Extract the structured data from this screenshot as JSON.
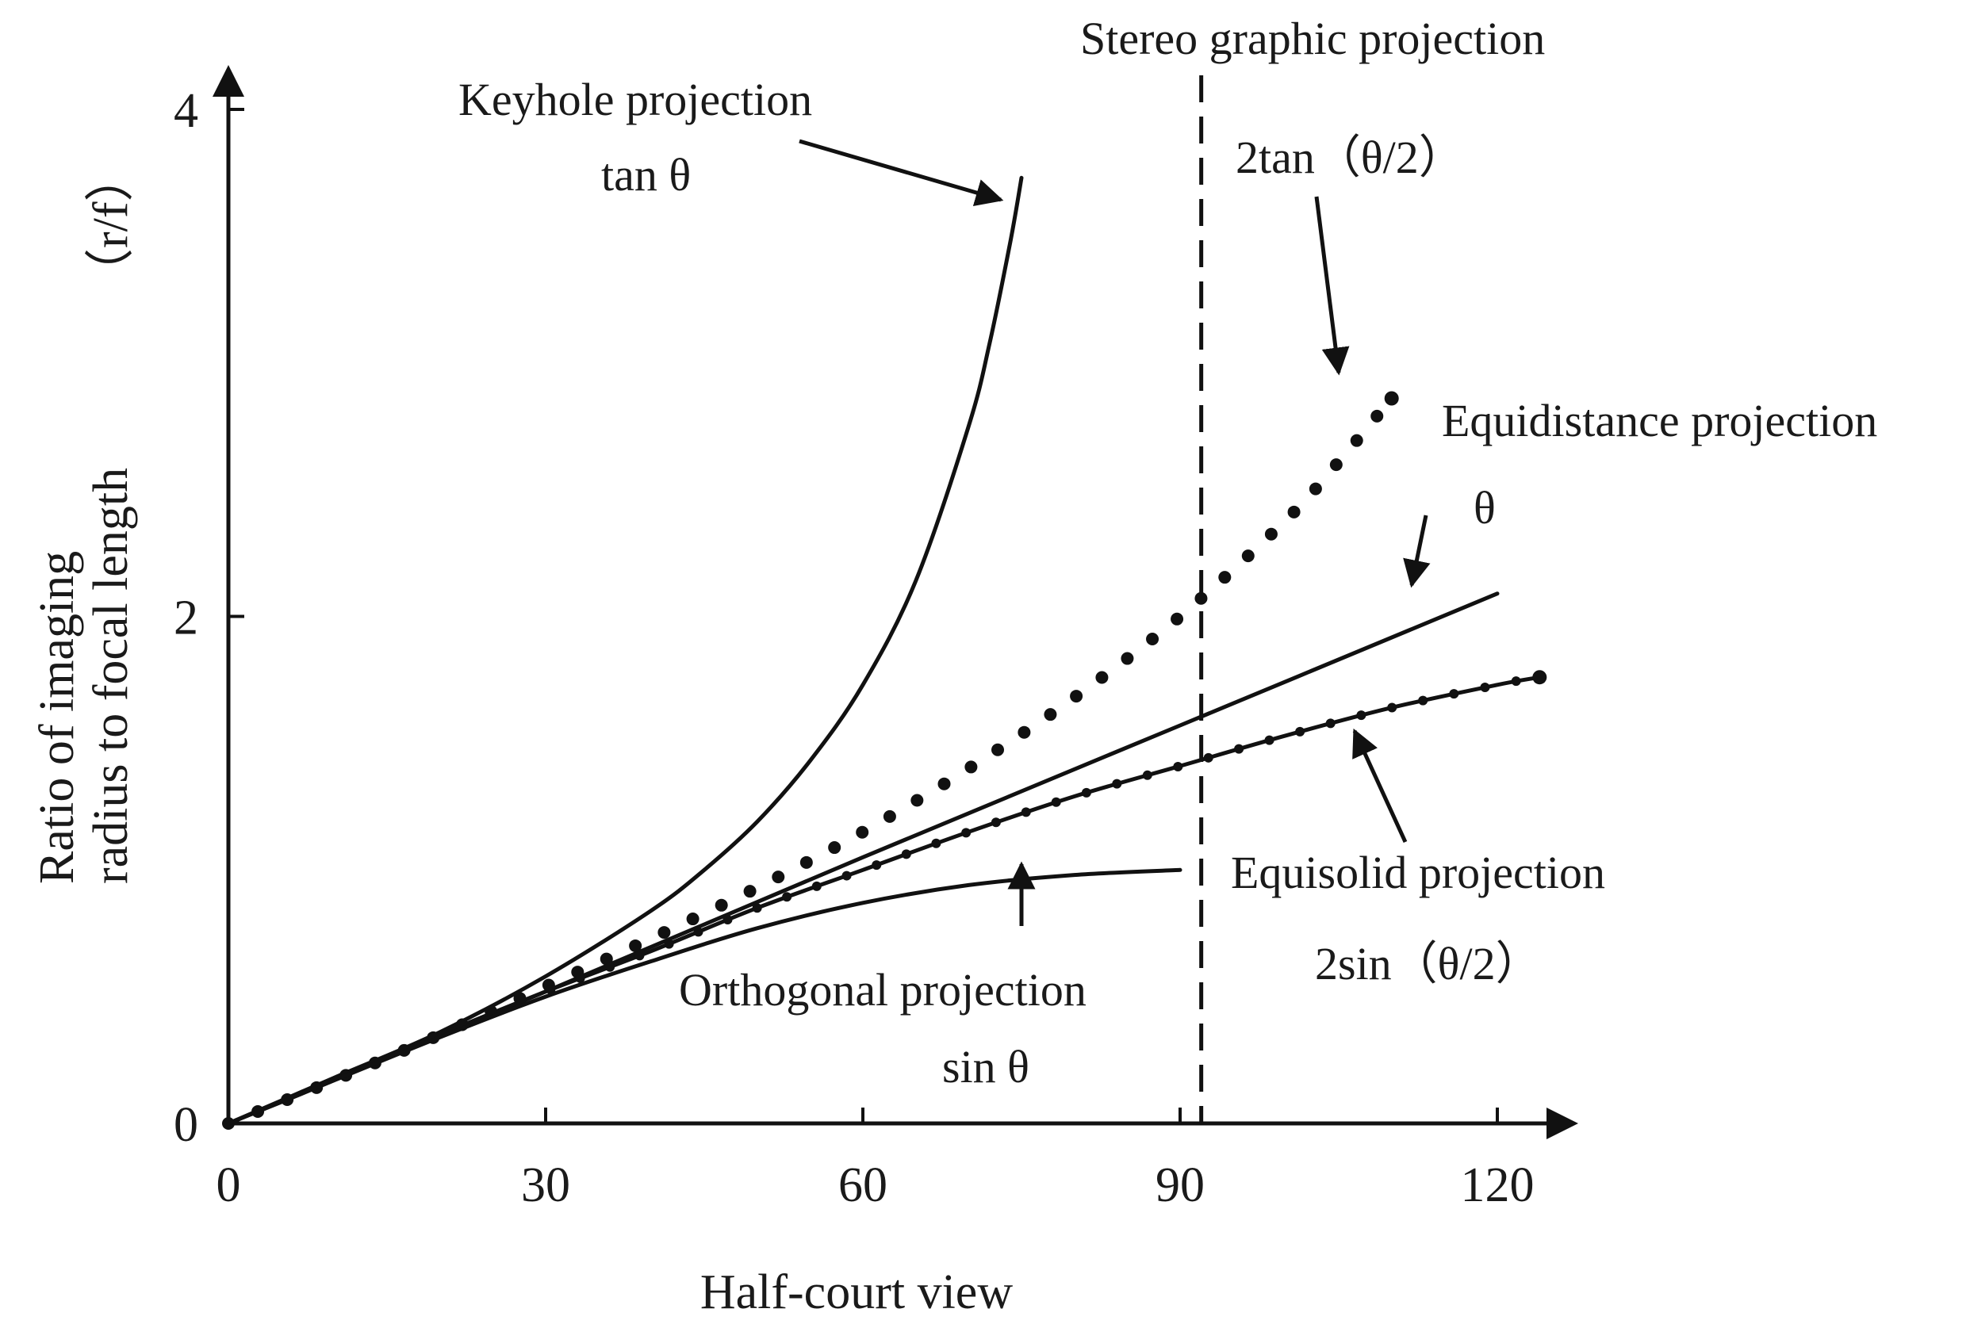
{
  "chart_data": {
    "type": "line",
    "title": "",
    "xlabel": "Half-court view",
    "ylabel_line1": "Ratio of imaging",
    "ylabel_line2": "radius to focal length",
    "ylabel_unit": "（r/f）",
    "xlim": [
      0,
      126
    ],
    "ylim": [
      0,
      4.1
    ],
    "x_ticks": [
      0,
      30,
      60,
      90,
      120
    ],
    "x_tick_labels": [
      "0",
      "30",
      "60",
      "90",
      "120"
    ],
    "y_ticks": [
      0,
      2,
      4
    ],
    "y_tick_labels": [
      "0",
      "2",
      "4"
    ],
    "grid": false,
    "reference_line": {
      "x": 92,
      "style": "dashed",
      "label": "Stereo graphic projection"
    },
    "series": [
      {
        "id": "keyhole",
        "name": "Keyhole projection",
        "formula": "tan θ",
        "style": "solid",
        "x": [
          0,
          10,
          20,
          30,
          40,
          45,
          50,
          55,
          60,
          65,
          70,
          72,
          74,
          75
        ],
        "y": [
          0,
          0.18,
          0.36,
          0.58,
          0.84,
          1.0,
          1.19,
          1.43,
          1.73,
          2.14,
          2.75,
          3.08,
          3.49,
          3.73
        ]
      },
      {
        "id": "stereographic",
        "name": "",
        "formula": "2tan（θ/2）",
        "style": "dotted",
        "x": [
          0,
          10,
          20,
          30,
          40,
          50,
          60,
          70,
          80,
          90,
          100,
          105,
          110
        ],
        "y": [
          0,
          0.17,
          0.35,
          0.54,
          0.73,
          0.93,
          1.15,
          1.4,
          1.68,
          2.0,
          2.38,
          2.61,
          2.86
        ]
      },
      {
        "id": "equidistance",
        "name": "Equidistance projection",
        "formula": "θ",
        "style": "solid",
        "x": [
          0,
          30,
          60,
          90,
          120
        ],
        "y": [
          0,
          0.52,
          1.05,
          1.57,
          2.09
        ]
      },
      {
        "id": "equisolid",
        "name": "Equisolid projection",
        "formula": "2sin（θ/2）",
        "style": "solid-with-dots",
        "x": [
          0,
          10,
          20,
          30,
          40,
          50,
          60,
          70,
          80,
          90,
          100,
          110,
          120,
          124
        ],
        "y": [
          0,
          0.17,
          0.35,
          0.52,
          0.68,
          0.85,
          1.0,
          1.15,
          1.29,
          1.41,
          1.53,
          1.64,
          1.73,
          1.76
        ]
      },
      {
        "id": "orthogonal",
        "name": "Orthogonal projection",
        "formula": "sin θ",
        "style": "solid",
        "x": [
          0,
          10,
          20,
          30,
          40,
          50,
          60,
          70,
          80,
          90
        ],
        "y": [
          0,
          0.17,
          0.34,
          0.5,
          0.64,
          0.77,
          0.87,
          0.94,
          0.98,
          1.0
        ]
      }
    ],
    "annotations": {
      "keyhole_name": "Keyhole projection",
      "keyhole_formula": "tan θ",
      "stereo_formula": "2tan（θ/2）",
      "equidistance_name": "Equidistance projection",
      "equidistance_formula": "θ",
      "equisolid_name": "Equisolid projection",
      "equisolid_formula": "2sin（θ/2）",
      "orthogonal_name": "Orthogonal projection",
      "orthogonal_formula": "sin θ"
    }
  }
}
